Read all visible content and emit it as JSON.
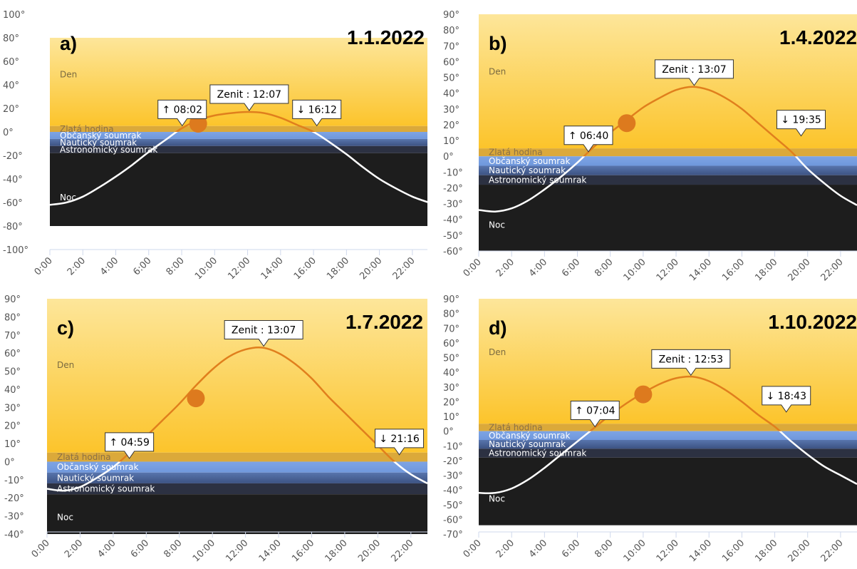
{
  "chart_data": [
    {
      "type": "line",
      "panel_label": "a)",
      "date": "1.1.2022",
      "ylim": [
        -100,
        100
      ],
      "yticks": [
        -100,
        -80,
        -60,
        -40,
        -20,
        0,
        20,
        40,
        60,
        80,
        100
      ],
      "zone_limits": [
        -80,
        80
      ],
      "xlim": [
        0,
        23
      ],
      "xticks": [
        "0:00",
        "2:00",
        "4:00",
        "6:00",
        "8:00",
        "10:00",
        "12:00",
        "14:00",
        "16:00",
        "18:00",
        "20:00",
        "22:00"
      ],
      "series": [
        {
          "x": [
            0,
            1,
            2,
            3,
            4,
            5,
            6,
            7,
            8,
            9,
            10,
            11,
            12,
            13,
            14,
            15,
            16,
            17,
            18,
            19,
            20,
            21,
            22,
            23
          ],
          "values": [
            -62,
            -60,
            -55,
            -47,
            -38,
            -28,
            -17,
            -7,
            3,
            10,
            14,
            16,
            17,
            16,
            12,
            6,
            0,
            -9,
            -19,
            -30,
            -40,
            -48,
            -55,
            -60
          ]
        }
      ],
      "sun_marker": {
        "x": 9,
        "y": 7
      },
      "zones": [
        {
          "label": "Den",
          "from": 5,
          "to": 80
        },
        {
          "label": "Zlatá hodina",
          "from": 0,
          "to": 5
        },
        {
          "label": "Občanský soumrak",
          "from": -6,
          "to": 0
        },
        {
          "label": "Nautický soumrak",
          "from": -12,
          "to": -6
        },
        {
          "label": "Astronomický soumrak",
          "from": -18,
          "to": -12
        },
        {
          "label": "Noc",
          "from": -80,
          "to": -18
        }
      ],
      "annotations": [
        {
          "text": "↑ 08:02",
          "x": 8.03,
          "y": 4
        },
        {
          "text": "Zenit : 12:07",
          "x": 12.1,
          "y": 17
        },
        {
          "text": "↓ 16:12",
          "x": 16.2,
          "y": 4
        }
      ]
    },
    {
      "type": "line",
      "panel_label": "b)",
      "date": "1.4.2022",
      "ylim": [
        -60,
        90
      ],
      "yticks": [
        -60,
        -50,
        -40,
        -30,
        -20,
        -10,
        0,
        10,
        20,
        30,
        40,
        50,
        60,
        70,
        80,
        90
      ],
      "zone_limits": [
        -60,
        90
      ],
      "xlim": [
        0,
        23
      ],
      "xticks": [
        "0:00",
        "2:00",
        "4:00",
        "6:00",
        "8:00",
        "10:00",
        "12:00",
        "14:00",
        "16:00",
        "18:00",
        "20:00",
        "22:00"
      ],
      "series": [
        {
          "x": [
            0,
            1,
            2,
            3,
            4,
            5,
            6,
            7,
            8,
            9,
            10,
            11,
            12,
            13,
            14,
            15,
            16,
            17,
            18,
            19,
            20,
            21,
            22,
            23
          ],
          "values": [
            -34,
            -35,
            -33,
            -28,
            -21,
            -13,
            -4,
            6,
            15,
            23,
            31,
            37,
            42,
            44,
            42,
            37,
            30,
            21,
            12,
            3,
            -8,
            -17,
            -25,
            -31
          ]
        }
      ],
      "sun_marker": {
        "x": 9,
        "y": 21
      },
      "zones": [
        {
          "label": "Den",
          "from": 5,
          "to": 90
        },
        {
          "label": "Zlatá hodina",
          "from": 0,
          "to": 5
        },
        {
          "label": "Občanský soumrak",
          "from": -6,
          "to": 0
        },
        {
          "label": "Nautický soumrak",
          "from": -12,
          "to": -6
        },
        {
          "label": "Astronomický soumrak",
          "from": -18,
          "to": -12
        },
        {
          "label": "Noc",
          "from": -60,
          "to": -18
        }
      ],
      "annotations": [
        {
          "text": "↑ 06:40",
          "x": 6.67,
          "y": 2
        },
        {
          "text": "Zenit : 13:07",
          "x": 13.1,
          "y": 44
        },
        {
          "text": "↓ 19:35",
          "x": 19.6,
          "y": 12
        }
      ]
    },
    {
      "type": "line",
      "panel_label": "c)",
      "date": "1.7.2022",
      "ylim": [
        -40,
        90
      ],
      "yticks": [
        -40,
        -30,
        -20,
        -10,
        0,
        10,
        20,
        30,
        40,
        50,
        60,
        70,
        80,
        90
      ],
      "zone_limits": [
        -40,
        90
      ],
      "xlim": [
        0,
        23
      ],
      "xticks": [
        "0:00",
        "2:00",
        "4:00",
        "6:00",
        "8:00",
        "10:00",
        "12:00",
        "14:00",
        "16:00",
        "18:00",
        "20:00",
        "22:00"
      ],
      "series": [
        {
          "x": [
            0,
            1,
            2,
            3,
            4,
            5,
            6,
            7,
            8,
            9,
            10,
            11,
            12,
            13,
            14,
            15,
            16,
            17,
            18,
            19,
            20,
            21,
            22,
            23
          ],
          "values": [
            -15,
            -16,
            -14,
            -9,
            -3,
            5,
            14,
            23,
            32,
            42,
            51,
            58,
            62,
            63,
            60,
            54,
            46,
            36,
            27,
            18,
            9,
            0,
            -7,
            -12
          ]
        }
      ],
      "sun_marker": {
        "x": 9,
        "y": 35
      },
      "zones": [
        {
          "label": "Den",
          "from": 5,
          "to": 90
        },
        {
          "label": "Zlatá hodina",
          "from": 0,
          "to": 5
        },
        {
          "label": "Občanský soumrak",
          "from": -6,
          "to": 0
        },
        {
          "label": "Nautický soumrak",
          "from": -12,
          "to": -6
        },
        {
          "label": "Astronomický soumrak",
          "from": -18,
          "to": -12
        },
        {
          "label": "Noc",
          "from": -40,
          "to": -18
        }
      ],
      "annotations": [
        {
          "text": "↑ 04:59",
          "x": 4.98,
          "y": 1
        },
        {
          "text": "Zenit : 13:07",
          "x": 13.1,
          "y": 63
        },
        {
          "text": "↓ 21:16",
          "x": 21.3,
          "y": 3
        }
      ]
    },
    {
      "type": "line",
      "panel_label": "d)",
      "date": "1.10.2022",
      "ylim": [
        -70,
        90
      ],
      "yticks": [
        -70,
        -60,
        -50,
        -40,
        -30,
        -20,
        -10,
        0,
        10,
        20,
        30,
        40,
        50,
        60,
        70,
        80,
        90
      ],
      "zone_limits": [
        -64,
        90
      ],
      "xlim": [
        0,
        23
      ],
      "xticks": [
        "0:00",
        "2:00",
        "4:00",
        "6:00",
        "8:00",
        "10:00",
        "12:00",
        "14:00",
        "16:00",
        "18:00",
        "20:00",
        "22:00"
      ],
      "series": [
        {
          "x": [
            0,
            1,
            2,
            3,
            4,
            5,
            6,
            7,
            8,
            9,
            10,
            11,
            12,
            13,
            14,
            15,
            16,
            17,
            18,
            19,
            20,
            21,
            22,
            23
          ],
          "values": [
            -42,
            -42,
            -39,
            -33,
            -25,
            -16,
            -7,
            2,
            11,
            19,
            26,
            32,
            36,
            37,
            34,
            28,
            20,
            11,
            3,
            -7,
            -16,
            -24,
            -30,
            -36
          ]
        }
      ],
      "sun_marker": {
        "x": 10,
        "y": 25
      },
      "zones": [
        {
          "label": "Den",
          "from": 5,
          "to": 90
        },
        {
          "label": "Zlatá hodina",
          "from": 0,
          "to": 5
        },
        {
          "label": "Občanský soumrak",
          "from": -6,
          "to": 0
        },
        {
          "label": "Nautický soumrak",
          "from": -12,
          "to": -6
        },
        {
          "label": "Astronomický soumrak",
          "from": -18,
          "to": -12
        },
        {
          "label": "Noc",
          "from": -64,
          "to": -18
        }
      ],
      "annotations": [
        {
          "text": "↑ 07:04",
          "x": 7.07,
          "y": 2
        },
        {
          "text": "Zenit : 12:53",
          "x": 12.9,
          "y": 37
        },
        {
          "text": "↓ 18:43",
          "x": 18.7,
          "y": 12
        }
      ]
    }
  ],
  "colors": {
    "day_top": "#fde69a",
    "day_bottom": "#fcc42b",
    "golden_hour": "#dba93a",
    "civil_twilight": "#6f97dc",
    "nautical_twilight": "#4d6aa0",
    "astronomical_twilight": "#2c3142",
    "night": "#1d1d1d",
    "curve_above": "#e07f1d",
    "curve_below": "#ffffff",
    "sun": "#dd7a1e",
    "label_day": "#7a6a40",
    "label_golden": "#8a7045",
    "label_twilight": "#ffffff",
    "axis": "#cfd8ec"
  }
}
